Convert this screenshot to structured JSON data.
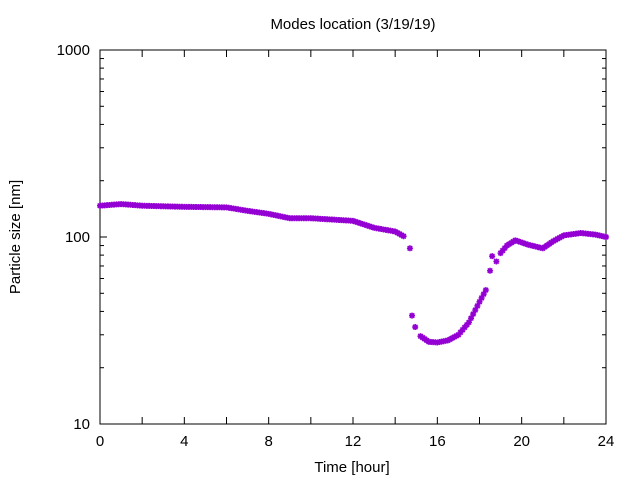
{
  "chart_data": {
    "type": "scatter",
    "title": "Modes location (3/19/19)",
    "xlabel": "Time [hour]",
    "ylabel": "Particle size [nm]",
    "xlim": [
      0,
      24
    ],
    "ylim": [
      10,
      1000
    ],
    "yscale": "log",
    "grid": false,
    "legend": "none",
    "marker": "asterisk",
    "color": "#9400d3",
    "x_ticks": [
      "0",
      "4",
      "8",
      "12",
      "16",
      "20",
      "24"
    ],
    "y_ticks": [
      "10",
      "100",
      "1000"
    ],
    "key_points": [
      {
        "x": 0.0,
        "y": 147
      },
      {
        "x": 1.0,
        "y": 150
      },
      {
        "x": 2.0,
        "y": 147
      },
      {
        "x": 4.0,
        "y": 145
      },
      {
        "x": 6.0,
        "y": 144
      },
      {
        "x": 7.0,
        "y": 138
      },
      {
        "x": 8.0,
        "y": 133
      },
      {
        "x": 9.0,
        "y": 126
      },
      {
        "x": 10.0,
        "y": 126
      },
      {
        "x": 12.0,
        "y": 122
      },
      {
        "x": 13.0,
        "y": 112
      },
      {
        "x": 14.0,
        "y": 107
      },
      {
        "x": 14.4,
        "y": 101
      },
      {
        "x": 14.7,
        "y": 87
      },
      {
        "x": 14.8,
        "y": 38
      },
      {
        "x": 14.95,
        "y": 33
      },
      {
        "x": 15.2,
        "y": 29.5
      },
      {
        "x": 15.6,
        "y": 27.5
      },
      {
        "x": 16.0,
        "y": 27.3
      },
      {
        "x": 16.5,
        "y": 28
      },
      {
        "x": 17.0,
        "y": 30
      },
      {
        "x": 17.5,
        "y": 35
      },
      {
        "x": 18.0,
        "y": 45
      },
      {
        "x": 18.3,
        "y": 52
      },
      {
        "x": 18.5,
        "y": 66
      },
      {
        "x": 18.6,
        "y": 79
      },
      {
        "x": 18.8,
        "y": 74
      },
      {
        "x": 19.0,
        "y": 82
      },
      {
        "x": 19.3,
        "y": 90
      },
      {
        "x": 19.7,
        "y": 96
      },
      {
        "x": 20.3,
        "y": 91
      },
      {
        "x": 21.0,
        "y": 87
      },
      {
        "x": 21.5,
        "y": 95
      },
      {
        "x": 22.0,
        "y": 102
      },
      {
        "x": 22.8,
        "y": 105
      },
      {
        "x": 23.5,
        "y": 103
      },
      {
        "x": 24.0,
        "y": 100
      }
    ]
  }
}
